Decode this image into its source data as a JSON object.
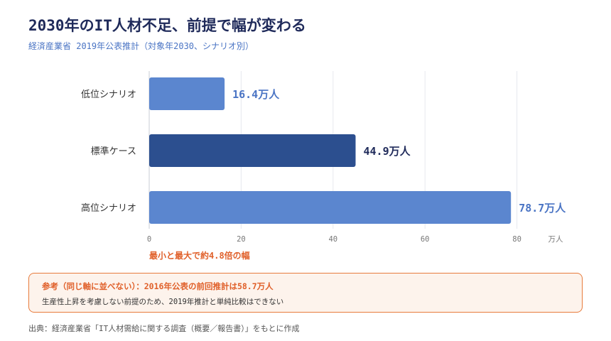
{
  "header": {
    "title": "2030年のIT人材不足、前提で幅が変わる",
    "subtitle": "経済産業省 2019年公表推計（対象年2030、シナリオ別）"
  },
  "chart_data": {
    "type": "bar",
    "orientation": "horizontal",
    "categories": [
      "低位シナリオ",
      "標準ケース",
      "高位シナリオ"
    ],
    "values": [
      16.4,
      44.9,
      78.7
    ],
    "value_labels": [
      "16.4万人",
      "44.9万人",
      "78.7万人"
    ],
    "bar_colors": [
      "#5b86cf",
      "#2c4f8f",
      "#5b86cf"
    ],
    "label_colors": [
      "#4a74c4",
      "#1f2a5a",
      "#4a74c4"
    ],
    "xticks": [
      0,
      20,
      40,
      60,
      80
    ],
    "xlim": [
      0,
      100
    ],
    "xunit": "万人",
    "grid": true,
    "annotation": "最小と最大で約4.8倍の幅",
    "annotation_color": "#e0602a"
  },
  "note": {
    "title": "参考（同じ軸に並べない）：2016年公表の前回推計は58.7万人",
    "text": "生産性上昇を考慮しない前提のため、2019年推計と単純比較はできない"
  },
  "source": "出典：経済産業省「IT人材需給に関する調査（概要／報告書）」をもとに作成",
  "colors": {
    "accent": "#e0602a",
    "title": "#1f2a5a",
    "bar_light": "#5b86cf",
    "bar_dark": "#2c4f8f"
  }
}
